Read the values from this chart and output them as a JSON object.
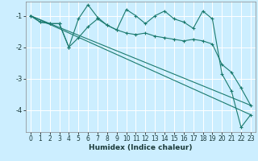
{
  "xlabel": "Humidex (Indice chaleur)",
  "bg_color": "#cceeff",
  "grid_color": "#ffffff",
  "line_color": "#1a7a6e",
  "xlim": [
    -0.5,
    23.5
  ],
  "ylim": [
    -4.7,
    -0.55
  ],
  "yticks": [
    -4,
    -3,
    -2,
    -1
  ],
  "xticks": [
    0,
    1,
    2,
    3,
    4,
    5,
    6,
    7,
    8,
    9,
    10,
    11,
    12,
    13,
    14,
    15,
    16,
    17,
    18,
    19,
    20,
    21,
    22,
    23
  ],
  "series": [
    {
      "x": [
        0,
        1,
        2,
        3,
        4,
        5,
        6,
        7,
        8,
        9,
        10,
        11,
        12,
        13,
        14,
        15,
        16,
        17,
        18,
        19,
        20,
        21,
        22,
        23
      ],
      "y": [
        -1.0,
        -1.2,
        -1.25,
        -1.25,
        -2.0,
        -1.1,
        -0.65,
        -1.05,
        -1.3,
        -1.45,
        -0.8,
        -1.0,
        -1.25,
        -1.0,
        -0.85,
        -1.1,
        -1.2,
        -1.4,
        -0.85,
        -1.1,
        -2.85,
        -3.4,
        -4.55,
        -4.15
      ]
    },
    {
      "x": [
        0,
        1,
        2,
        3,
        4,
        5,
        6,
        7,
        8,
        9,
        10,
        11,
        12,
        13,
        14,
        15,
        16,
        17,
        18,
        19,
        20,
        21,
        22,
        23
      ],
      "y": [
        -1.0,
        -1.2,
        -1.25,
        -1.25,
        -2.0,
        -1.7,
        -1.35,
        -1.1,
        -1.3,
        -1.45,
        -1.55,
        -1.6,
        -1.55,
        -1.65,
        -1.7,
        -1.75,
        -1.8,
        -1.75,
        -1.8,
        -1.9,
        -2.55,
        -2.8,
        -3.3,
        -3.85
      ]
    },
    {
      "x": [
        0,
        23
      ],
      "y": [
        -1.0,
        -4.15
      ]
    },
    {
      "x": [
        0,
        23
      ],
      "y": [
        -1.0,
        -3.85
      ]
    }
  ]
}
